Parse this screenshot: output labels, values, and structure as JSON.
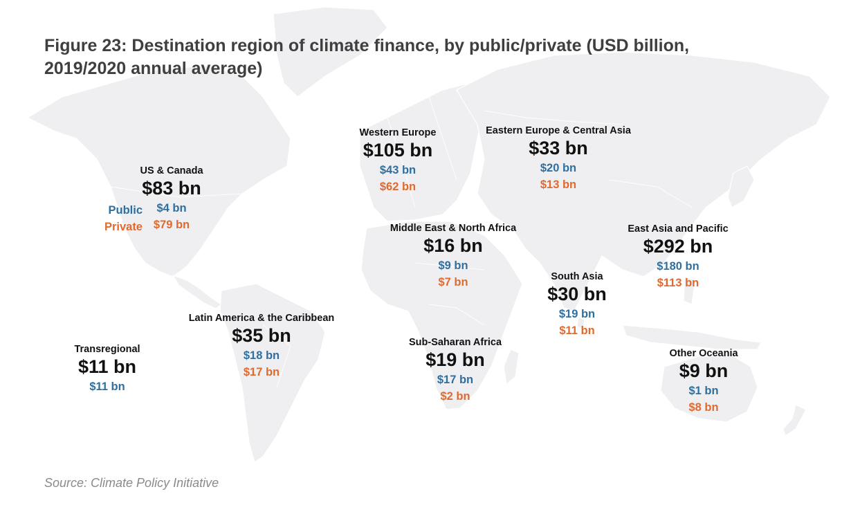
{
  "title_line1": "Figure 23: Destination region of climate finance, by public/private (USD billion,",
  "title_line2": "2019/2020 annual average)",
  "source": "Source: Climate Policy Initiative",
  "legend": {
    "public_label": "Public",
    "private_label": "Private"
  },
  "colors": {
    "public": "#2f6f9f",
    "private": "#e06a2e",
    "land": "#efeff1",
    "text": "#111111",
    "title": "#3f3f3f"
  },
  "regions": {
    "us_canada": {
      "name": "US & Canada",
      "total": "$83 bn",
      "public": "$4 bn",
      "private": "$79 bn"
    },
    "western_europe": {
      "name": "Western Europe",
      "total": "$105 bn",
      "public": "$43 bn",
      "private": "$62 bn"
    },
    "eastern_europe": {
      "name": "Eastern Europe & Central Asia",
      "total": "$33 bn",
      "public": "$20 bn",
      "private": "$13 bn"
    },
    "mena": {
      "name": "Middle East & North Africa",
      "total": "$16 bn",
      "public": "$9 bn",
      "private": "$7 bn"
    },
    "east_asia": {
      "name": "East Asia and Pacific",
      "total": "$292 bn",
      "public": "$180 bn",
      "private": "$113 bn"
    },
    "south_asia": {
      "name": "South Asia",
      "total": "$30 bn",
      "public": "$19 bn",
      "private": "$11 bn"
    },
    "latin_america": {
      "name": "Latin America & the Caribbean",
      "total": "$35 bn",
      "public": "$18 bn",
      "private": "$17 bn"
    },
    "ssa": {
      "name": "Sub-Saharan Africa",
      "total": "$19 bn",
      "public": "$17 bn",
      "private": "$2 bn"
    },
    "transregional": {
      "name": "Transregional",
      "total": "$11 bn",
      "public": "$11 bn"
    },
    "other_oceania": {
      "name": "Other Oceania",
      "total": "$9 bn",
      "public": "$1 bn",
      "private": "$8 bn"
    }
  }
}
